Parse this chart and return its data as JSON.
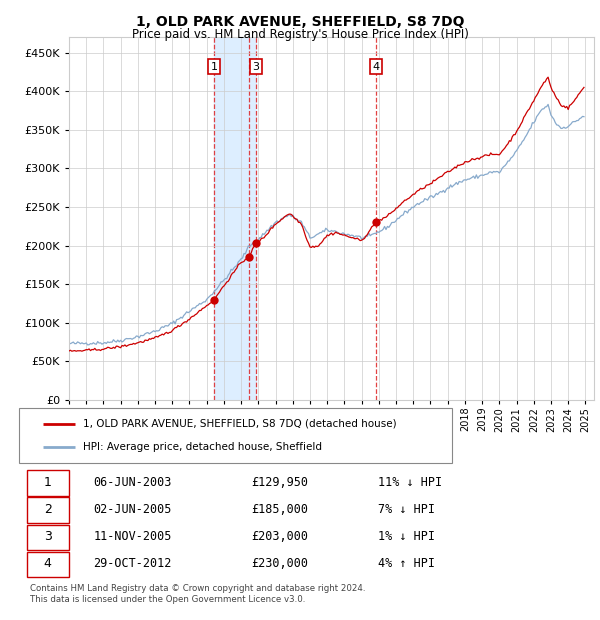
{
  "title": "1, OLD PARK AVENUE, SHEFFIELD, S8 7DQ",
  "subtitle": "Price paid vs. HM Land Registry's House Price Index (HPI)",
  "legend_line1": "1, OLD PARK AVENUE, SHEFFIELD, S8 7DQ (detached house)",
  "legend_line2": "HPI: Average price, detached house, Sheffield",
  "footer1": "Contains HM Land Registry data © Crown copyright and database right 2024.",
  "footer2": "This data is licensed under the Open Government Licence v3.0.",
  "transactions": [
    {
      "num": 1,
      "date": "06-JUN-2003",
      "price": 129950,
      "pct": "11%",
      "dir": "↓"
    },
    {
      "num": 2,
      "date": "02-JUN-2005",
      "price": 185000,
      "pct": "7%",
      "dir": "↓"
    },
    {
      "num": 3,
      "date": "11-NOV-2005",
      "price": 203000,
      "pct": "1%",
      "dir": "↓"
    },
    {
      "num": 4,
      "date": "29-OCT-2012",
      "price": 230000,
      "pct": "4%",
      "dir": "↑"
    }
  ],
  "vline_dates": [
    2003.43,
    2005.43,
    2005.87,
    2012.83
  ],
  "red_line_color": "#cc0000",
  "blue_line_color": "#88aacc",
  "shade_color": "#ddeeff",
  "vline_color": "#dd2222",
  "marker_color": "#cc0000",
  "background_color": "#ffffff",
  "grid_color": "#cccccc",
  "ylim": [
    0,
    470000
  ],
  "xlim_start": 1995.0,
  "xlim_end": 2025.5,
  "hpi_anchors": [
    [
      1995.0,
      73000
    ],
    [
      1996.0,
      73500
    ],
    [
      1997.0,
      74000
    ],
    [
      1998.0,
      77000
    ],
    [
      1999.0,
      82000
    ],
    [
      2000.0,
      89000
    ],
    [
      2001.0,
      99000
    ],
    [
      2002.0,
      115000
    ],
    [
      2003.0,
      130000
    ],
    [
      2004.0,
      155000
    ],
    [
      2005.0,
      182000
    ],
    [
      2005.5,
      200000
    ],
    [
      2006.0,
      208000
    ],
    [
      2007.0,
      230000
    ],
    [
      2007.8,
      240000
    ],
    [
      2008.5,
      230000
    ],
    [
      2009.0,
      210000
    ],
    [
      2009.5,
      215000
    ],
    [
      2010.0,
      220000
    ],
    [
      2010.5,
      218000
    ],
    [
      2011.0,
      215000
    ],
    [
      2011.5,
      213000
    ],
    [
      2012.0,
      210000
    ],
    [
      2012.5,
      212000
    ],
    [
      2013.0,
      218000
    ],
    [
      2013.5,
      224000
    ],
    [
      2014.0,
      233000
    ],
    [
      2014.5,
      242000
    ],
    [
      2015.0,
      250000
    ],
    [
      2015.5,
      257000
    ],
    [
      2016.0,
      262000
    ],
    [
      2016.5,
      268000
    ],
    [
      2017.0,
      275000
    ],
    [
      2017.5,
      280000
    ],
    [
      2018.0,
      285000
    ],
    [
      2018.5,
      288000
    ],
    [
      2019.0,
      291000
    ],
    [
      2019.5,
      295000
    ],
    [
      2020.0,
      295000
    ],
    [
      2020.5,
      308000
    ],
    [
      2021.0,
      322000
    ],
    [
      2021.5,
      340000
    ],
    [
      2022.0,
      360000
    ],
    [
      2022.5,
      377000
    ],
    [
      2022.83,
      382000
    ],
    [
      2023.0,
      370000
    ],
    [
      2023.3,
      358000
    ],
    [
      2023.6,
      352000
    ],
    [
      2024.0,
      355000
    ],
    [
      2024.5,
      362000
    ],
    [
      2024.9,
      368000
    ]
  ],
  "prop_anchors": [
    [
      1995.0,
      63000
    ],
    [
      1996.0,
      64000
    ],
    [
      1997.0,
      66000
    ],
    [
      1998.0,
      69000
    ],
    [
      1999.0,
      74000
    ],
    [
      2000.0,
      80000
    ],
    [
      2001.0,
      90000
    ],
    [
      2002.0,
      105000
    ],
    [
      2003.43,
      129950
    ],
    [
      2004.0,
      148000
    ],
    [
      2005.0,
      178000
    ],
    [
      2005.43,
      185000
    ],
    [
      2005.87,
      203000
    ],
    [
      2006.3,
      210000
    ],
    [
      2007.0,
      228000
    ],
    [
      2007.8,
      242000
    ],
    [
      2008.5,
      228000
    ],
    [
      2009.0,
      198000
    ],
    [
      2009.5,
      200000
    ],
    [
      2010.0,
      213000
    ],
    [
      2010.5,
      217000
    ],
    [
      2011.0,
      213000
    ],
    [
      2011.5,
      210000
    ],
    [
      2012.0,
      206000
    ],
    [
      2012.83,
      230000
    ],
    [
      2013.0,
      232000
    ],
    [
      2013.5,
      238000
    ],
    [
      2014.0,
      248000
    ],
    [
      2014.5,
      258000
    ],
    [
      2015.0,
      266000
    ],
    [
      2015.5,
      274000
    ],
    [
      2016.0,
      280000
    ],
    [
      2016.5,
      288000
    ],
    [
      2017.0,
      295000
    ],
    [
      2017.5,
      302000
    ],
    [
      2018.0,
      308000
    ],
    [
      2018.5,
      312000
    ],
    [
      2019.0,
      315000
    ],
    [
      2019.5,
      318000
    ],
    [
      2020.0,
      318000
    ],
    [
      2020.5,
      332000
    ],
    [
      2021.0,
      348000
    ],
    [
      2021.5,
      368000
    ],
    [
      2022.0,
      388000
    ],
    [
      2022.5,
      408000
    ],
    [
      2022.83,
      418000
    ],
    [
      2023.0,
      405000
    ],
    [
      2023.3,
      392000
    ],
    [
      2023.6,
      382000
    ],
    [
      2024.0,
      378000
    ],
    [
      2024.5,
      392000
    ],
    [
      2024.9,
      405000
    ]
  ]
}
